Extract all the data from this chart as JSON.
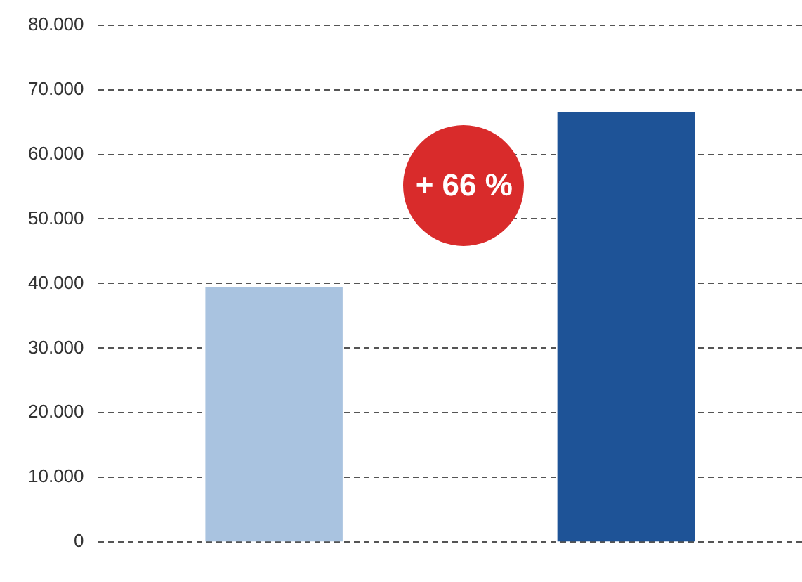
{
  "chart_data": {
    "type": "bar",
    "categories": [
      null,
      null
    ],
    "values": [
      39500,
      66500
    ],
    "colors": [
      "#a9c3e0",
      "#1e5397"
    ],
    "ylim": [
      0,
      80000
    ],
    "yticks": [
      {
        "value": 0,
        "label": "0"
      },
      {
        "value": 10000,
        "label": "10.000"
      },
      {
        "value": 20000,
        "label": "20.000"
      },
      {
        "value": 30000,
        "label": "30.000"
      },
      {
        "value": 40000,
        "label": "40.000"
      },
      {
        "value": 50000,
        "label": "50.000"
      },
      {
        "value": 60000,
        "label": "60.000"
      },
      {
        "value": 70000,
        "label": "70.000"
      },
      {
        "value": 80000,
        "label": "80.000"
      }
    ],
    "grid": "y",
    "annotations": [
      "+ 66 %"
    ]
  }
}
